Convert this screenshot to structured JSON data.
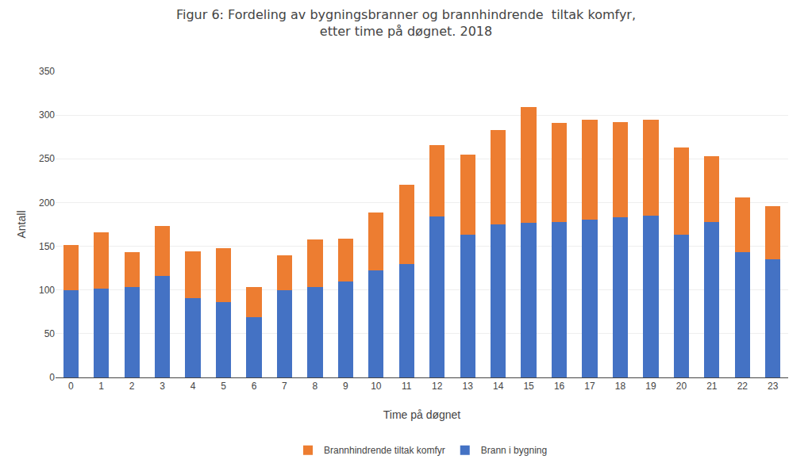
{
  "chart_data": {
    "type": "bar",
    "title": "Figur 6: Fordeling av bygningsbranner og brannhindrende  tiltak komfyr,\netter time på døgnet. 2018",
    "x_label": "Time på døgnet",
    "y_label": "Antall",
    "categories": [
      0,
      1,
      2,
      3,
      4,
      5,
      6,
      7,
      8,
      9,
      10,
      11,
      12,
      13,
      14,
      15,
      16,
      17,
      18,
      19,
      20,
      21,
      22,
      23
    ],
    "series": [
      {
        "name": "Brann i bygning",
        "color": "#4472C4",
        "values": [
          100,
          102,
          103,
          116,
          91,
          86,
          69,
          100,
          103,
          110,
          122,
          130,
          184,
          163,
          175,
          177,
          178,
          180,
          183,
          185,
          163,
          178,
          143,
          135
        ]
      },
      {
        "name": "Brannhindrende tiltak komfyr",
        "color": "#ED7D31",
        "values": [
          51,
          64,
          40,
          57,
          53,
          62,
          34,
          40,
          55,
          49,
          67,
          90,
          82,
          92,
          108,
          132,
          113,
          115,
          109,
          110,
          100,
          75,
          63,
          61
        ]
      }
    ],
    "stacked": true,
    "ylim": [
      0,
      350
    ],
    "yticks": [
      0,
      50,
      100,
      150,
      200,
      250,
      300,
      350
    ],
    "grid": true,
    "legend": "bottom"
  }
}
